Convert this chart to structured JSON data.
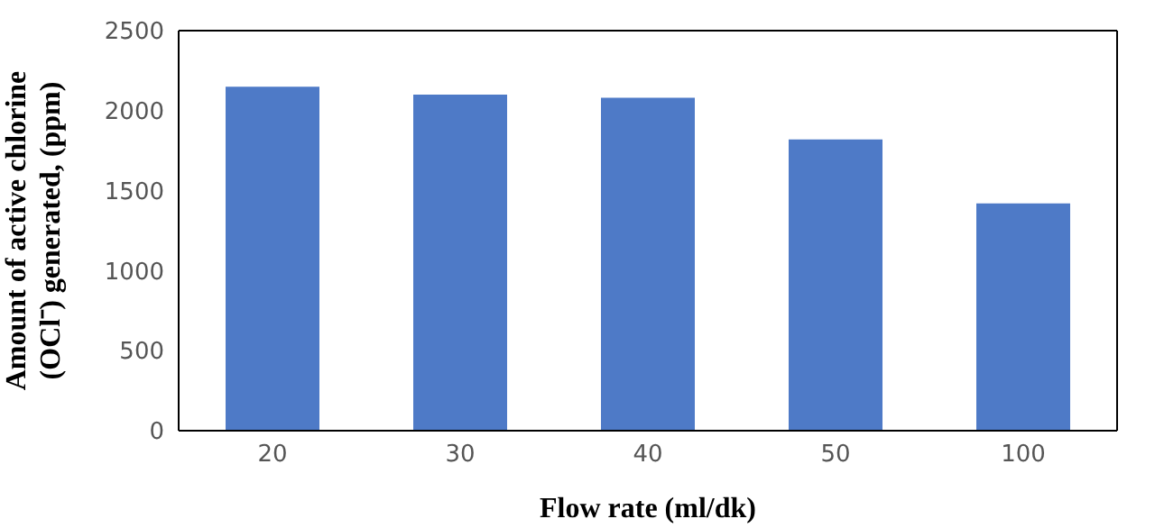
{
  "chart_data": {
    "type": "bar",
    "xlabel": "Flow rate (ml/dk)",
    "ylabel": "Amount of active chlorine\n(OCl⁻) generated, (ppm)",
    "categories": [
      "20",
      "30",
      "40",
      "50",
      "100"
    ],
    "values": [
      2150,
      2100,
      2080,
      1820,
      1420
    ],
    "color": "#4e7ac7",
    "ylim": [
      0,
      2500
    ],
    "yticks": [
      0,
      500,
      1000,
      1500,
      2000,
      2500
    ],
    "grid": false,
    "legend": false
  }
}
